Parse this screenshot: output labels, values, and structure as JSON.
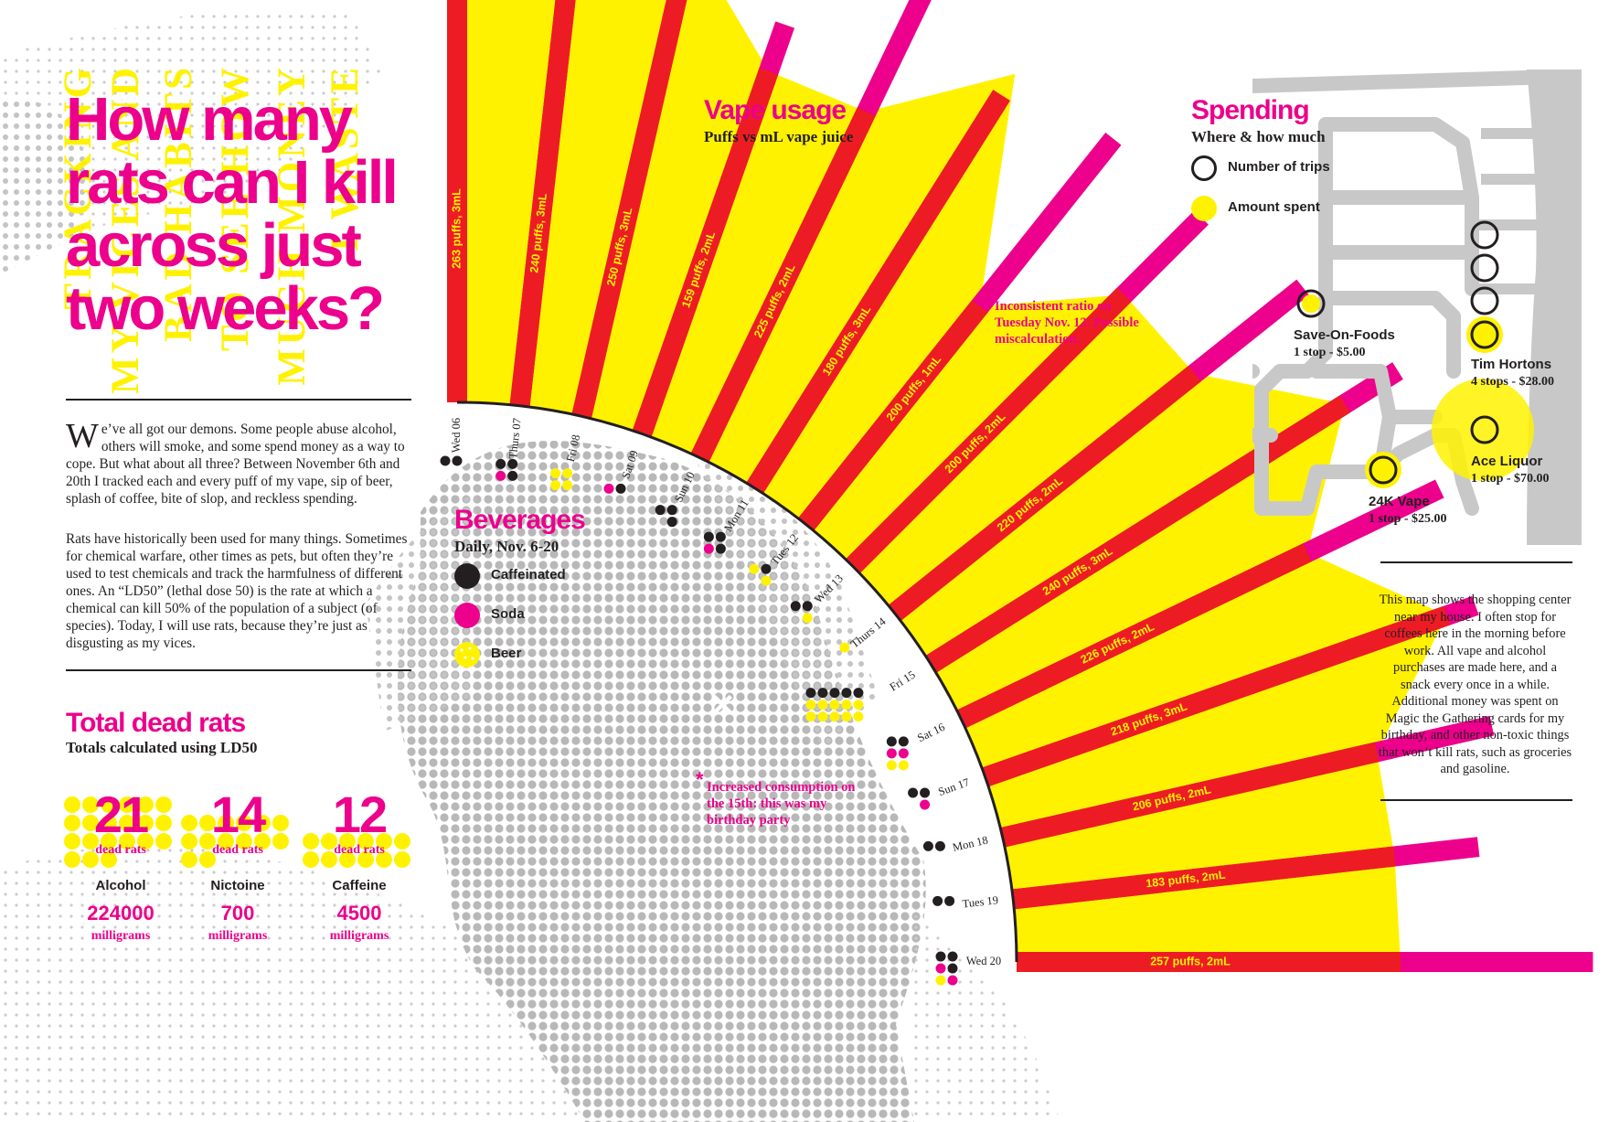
{
  "background_words": [
    "TRACKING",
    "MY VICES AND",
    "BAD HABITS",
    "TO SEE HOW",
    "MUCH MONEY",
    "I WASTE"
  ],
  "title_lines": [
    "How many",
    "rats can I kill",
    "across just",
    "two weeks?"
  ],
  "intro": {
    "dropcap": "W",
    "para1": "e’ve all got our demons. Some people abuse alcohol, others will smoke, and some spend money as a way to cope. But what about all three? Between November 6th and 20th I tracked each and every puff of my vape, sip of beer, splash of coffee, bite of slop, and reckless spending.",
    "para2": "Rats have historically been used for many things. Sometimes for chemical warfare, other times as pets, but often they’re used to test chemicals and track the harmfulness of different ones. An “LD50” (lethal dose 50) is the rate at which a chemical can kill 50% of the population of a subject (of species). Today, I will use rats, because they’re just as disgusting as my vices."
  },
  "dead_rats": {
    "title": "Total dead rats",
    "subtitle": "Totals calculated using LD50",
    "dead_label": "dead rats",
    "items": [
      {
        "number": "21",
        "name": "Alcohol",
        "mg": "224000",
        "unit": "milligrams"
      },
      {
        "number": "14",
        "name": "Nictoine",
        "mg": "700",
        "unit": "milligrams"
      },
      {
        "number": "12",
        "name": "Caffeine",
        "mg": "4500",
        "unit": "milligrams"
      }
    ]
  },
  "vape": {
    "title": "Vape usage",
    "subtitle": "Puffs vs mL vape juice"
  },
  "beverages": {
    "title": "Beverages",
    "subtitle": "Daily, Nov. 6-20",
    "legend": [
      {
        "label": "Caffeinated",
        "color": "#231f20"
      },
      {
        "label": "Soda",
        "color": "#ec008c"
      },
      {
        "label": "Beer",
        "color": "#fff200"
      }
    ]
  },
  "notes": {
    "tuesday": "Inconsistent ratio on Tuesday Nov. 12. Possible miscalculation.",
    "birthday": "Increased consumption on the 15th: this was my birthday party",
    "star": "*",
    "x_mark": "✕"
  },
  "chart_data": {
    "type": "radial-bar",
    "series_meaning": "bar length = puffs, yellow band = mL vape juice",
    "days": [
      {
        "day": "Wed 06",
        "puffs": 263,
        "ml": 3,
        "label": "263 puffs, 3mL",
        "caffeinated": 2,
        "soda": 0,
        "beer": 0
      },
      {
        "day": "Thurs 07",
        "puffs": 240,
        "ml": 3,
        "label": "240 puffs, 3mL",
        "caffeinated": 3,
        "soda": 1,
        "beer": 0
      },
      {
        "day": "Fri 08",
        "puffs": 250,
        "ml": 3,
        "label": "250 puffs, 3mL",
        "caffeinated": 0,
        "soda": 0,
        "beer": 4
      },
      {
        "day": "Sat 09",
        "puffs": 159,
        "ml": 2,
        "label": "159 puffs, 2mL",
        "caffeinated": 1,
        "soda": 1,
        "beer": 0
      },
      {
        "day": "Sun 10",
        "puffs": 225,
        "ml": 2,
        "label": "225 puffs, 2mL",
        "caffeinated": 3,
        "soda": 0,
        "beer": 0
      },
      {
        "day": "Mon 11",
        "puffs": 180,
        "ml": 3,
        "label": "180 puffs, 3mL",
        "caffeinated": 3,
        "soda": 1,
        "beer": 0
      },
      {
        "day": "Tues 12",
        "puffs": 200,
        "ml": 1,
        "label": "200 puffs, 1mL",
        "caffeinated": 1,
        "soda": 0,
        "beer": 2
      },
      {
        "day": "Wed 13",
        "puffs": 200,
        "ml": 2,
        "label": "200 puffs, 2mL",
        "caffeinated": 2,
        "soda": 0,
        "beer": 1
      },
      {
        "day": "Thurs 14",
        "puffs": 220,
        "ml": 2,
        "label": "220 puffs, 2mL",
        "caffeinated": 0,
        "soda": 0,
        "beer": 1
      },
      {
        "day": "Fri 15",
        "puffs": 240,
        "ml": 3,
        "label": "240 puffs, 3mL",
        "caffeinated": 5,
        "soda": 0,
        "beer": 10
      },
      {
        "day": "Sat 16",
        "puffs": 226,
        "ml": 2,
        "label": "226 puffs, 2mL",
        "caffeinated": 2,
        "soda": 2,
        "beer": 2
      },
      {
        "day": "Sun 17",
        "puffs": 218,
        "ml": 3,
        "label": "218 puffs, 3mL",
        "caffeinated": 2,
        "soda": 1,
        "beer": 0
      },
      {
        "day": "Mon 18",
        "puffs": 206,
        "ml": 2,
        "label": "206 puffs, 2mL",
        "caffeinated": 2,
        "soda": 0,
        "beer": 0
      },
      {
        "day": "Tues 19",
        "puffs": 183,
        "ml": 2,
        "label": "183 puffs, 2mL",
        "caffeinated": 2,
        "soda": 0,
        "beer": 0
      },
      {
        "day": "Wed 20",
        "puffs": 257,
        "ml": 2,
        "label": "257 puffs, 2mL",
        "caffeinated": 3,
        "soda": 2,
        "beer": 1
      }
    ]
  },
  "spending": {
    "title": "Spending",
    "subtitle": "Where & how much",
    "legend": [
      {
        "label": "Number of trips",
        "kind": "ring"
      },
      {
        "label": "Amount spent",
        "kind": "fill",
        "color": "#fff200"
      }
    ],
    "stores": [
      {
        "name": "Save-On-Foods",
        "info": "1 stop - $5.00",
        "stops": 1,
        "amount": 5
      },
      {
        "name": "Tim Hortons",
        "info": "4 stops - $28.00",
        "stops": 4,
        "amount": 28
      },
      {
        "name": "Ace Liquor",
        "info": "1 stop - $70.00",
        "stops": 1,
        "amount": 70
      },
      {
        "name": "24K Vape",
        "info": "1 stop - $25.00",
        "stops": 1,
        "amount": 25
      }
    ],
    "map_description": "This map shows the shopping center near my house. I often stop for coffees here in the morning before work. All vape and alcohol purchases are made here, and a snack every once in a while. Additional money was spent on Magic the Gathering cards for my birthday, and other non-toxic things that won’t kill rats, such as groceries and gasoline."
  },
  "colors": {
    "magenta": "#ec008c",
    "yellow": "#fff200",
    "red": "#ed1c24",
    "black": "#231f20",
    "gray": "#c8c8c8"
  }
}
